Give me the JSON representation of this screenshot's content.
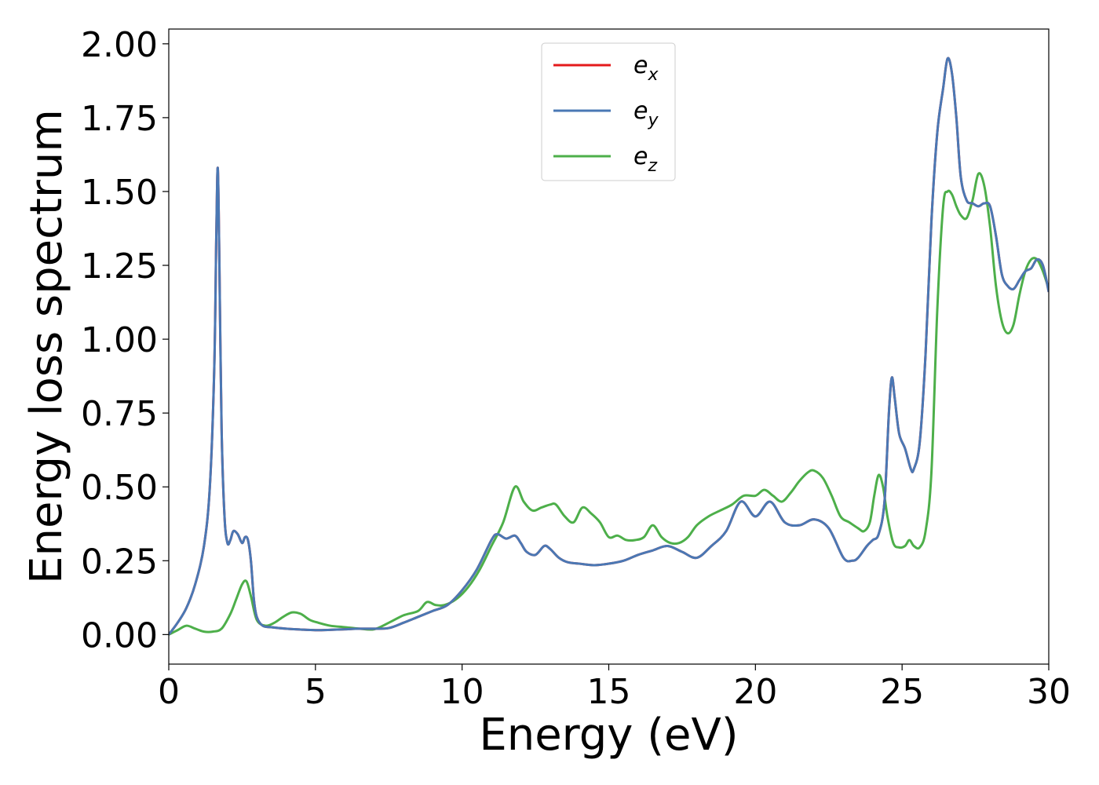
{
  "chart_data": {
    "type": "line",
    "title": "",
    "xlabel": "Energy (eV)",
    "ylabel": "Energy loss spectrum",
    "xlim": [
      0,
      30
    ],
    "ylim": [
      -0.1,
      2.05
    ],
    "xticks": [
      0,
      5,
      10,
      15,
      20,
      25,
      30
    ],
    "xtick_labels": [
      "0",
      "5",
      "10",
      "15",
      "20",
      "25",
      "30"
    ],
    "yticks": [
      0.0,
      0.25,
      0.5,
      0.75,
      1.0,
      1.25,
      1.5,
      1.75,
      2.0
    ],
    "ytick_labels": [
      "0.00",
      "0.25",
      "0.50",
      "0.75",
      "1.00",
      "1.25",
      "1.50",
      "1.75",
      "2.00"
    ],
    "grid": false,
    "legend_position": "top-center",
    "series": [
      {
        "name": "e",
        "subscript": "x",
        "color": "#e41a1c",
        "x": [
          0,
          0.3,
          0.6,
          0.9,
          1.2,
          1.4,
          1.55,
          1.62,
          1.67,
          1.72,
          1.8,
          1.9,
          2.0,
          2.1,
          2.2,
          2.35,
          2.5,
          2.6,
          2.7,
          2.8,
          2.9,
          3.0,
          3.2,
          3.5,
          4.0,
          4.5,
          5.0,
          5.5,
          6.0,
          6.5,
          7.0,
          7.5,
          8.0,
          8.5,
          9.0,
          9.5,
          10.0,
          10.5,
          11.0,
          11.2,
          11.5,
          11.8,
          12.0,
          12.2,
          12.5,
          12.8,
          13.0,
          13.3,
          13.6,
          14.0,
          14.5,
          15.0,
          15.5,
          16.0,
          16.5,
          17.0,
          17.5,
          18.0,
          18.5,
          19.0,
          19.5,
          20.0,
          20.5,
          21.0,
          21.5,
          22.0,
          22.5,
          23.0,
          23.3,
          23.5,
          23.8,
          24.0,
          24.2,
          24.4,
          24.55,
          24.65,
          24.75,
          24.9,
          25.1,
          25.3,
          25.4,
          25.6,
          25.8,
          26.0,
          26.2,
          26.4,
          26.55,
          26.7,
          26.85,
          27.0,
          27.2,
          27.4,
          27.6,
          27.8,
          28.0,
          28.2,
          28.4,
          28.6,
          28.8,
          29.0,
          29.2,
          29.4,
          29.6,
          29.8,
          30.0
        ],
        "y": [
          0.0,
          0.04,
          0.09,
          0.17,
          0.3,
          0.5,
          0.9,
          1.35,
          1.58,
          1.3,
          0.7,
          0.4,
          0.31,
          0.32,
          0.35,
          0.34,
          0.31,
          0.33,
          0.32,
          0.25,
          0.12,
          0.06,
          0.03,
          0.025,
          0.02,
          0.017,
          0.015,
          0.016,
          0.018,
          0.02,
          0.02,
          0.022,
          0.04,
          0.06,
          0.08,
          0.1,
          0.15,
          0.22,
          0.32,
          0.34,
          0.325,
          0.335,
          0.31,
          0.28,
          0.27,
          0.3,
          0.29,
          0.26,
          0.245,
          0.24,
          0.235,
          0.24,
          0.25,
          0.27,
          0.285,
          0.3,
          0.28,
          0.26,
          0.3,
          0.35,
          0.45,
          0.4,
          0.45,
          0.38,
          0.37,
          0.39,
          0.36,
          0.26,
          0.25,
          0.26,
          0.3,
          0.32,
          0.34,
          0.45,
          0.75,
          0.87,
          0.8,
          0.68,
          0.63,
          0.56,
          0.56,
          0.65,
          0.95,
          1.4,
          1.7,
          1.85,
          1.95,
          1.9,
          1.75,
          1.55,
          1.47,
          1.46,
          1.45,
          1.46,
          1.45,
          1.35,
          1.22,
          1.18,
          1.17,
          1.2,
          1.23,
          1.24,
          1.27,
          1.25,
          1.16
        ]
      },
      {
        "name": "e",
        "subscript": "y",
        "color": "#4a78b4",
        "x": [
          0,
          0.3,
          0.6,
          0.9,
          1.2,
          1.4,
          1.55,
          1.62,
          1.67,
          1.72,
          1.8,
          1.9,
          2.0,
          2.1,
          2.2,
          2.35,
          2.5,
          2.6,
          2.7,
          2.8,
          2.9,
          3.0,
          3.2,
          3.5,
          4.0,
          4.5,
          5.0,
          5.5,
          6.0,
          6.5,
          7.0,
          7.5,
          8.0,
          8.5,
          9.0,
          9.5,
          10.0,
          10.5,
          11.0,
          11.2,
          11.5,
          11.8,
          12.0,
          12.2,
          12.5,
          12.8,
          13.0,
          13.3,
          13.6,
          14.0,
          14.5,
          15.0,
          15.5,
          16.0,
          16.5,
          17.0,
          17.5,
          18.0,
          18.5,
          19.0,
          19.5,
          20.0,
          20.5,
          21.0,
          21.5,
          22.0,
          22.5,
          23.0,
          23.3,
          23.5,
          23.8,
          24.0,
          24.2,
          24.4,
          24.55,
          24.65,
          24.75,
          24.9,
          25.1,
          25.3,
          25.4,
          25.6,
          25.8,
          26.0,
          26.2,
          26.4,
          26.55,
          26.7,
          26.85,
          27.0,
          27.2,
          27.4,
          27.6,
          27.8,
          28.0,
          28.2,
          28.4,
          28.6,
          28.8,
          29.0,
          29.2,
          29.4,
          29.6,
          29.8,
          30.0
        ],
        "y": [
          0.0,
          0.04,
          0.09,
          0.17,
          0.3,
          0.5,
          0.9,
          1.35,
          1.58,
          1.3,
          0.7,
          0.4,
          0.31,
          0.32,
          0.35,
          0.34,
          0.31,
          0.33,
          0.32,
          0.25,
          0.12,
          0.06,
          0.03,
          0.025,
          0.02,
          0.017,
          0.015,
          0.016,
          0.018,
          0.02,
          0.02,
          0.022,
          0.04,
          0.06,
          0.08,
          0.1,
          0.15,
          0.22,
          0.32,
          0.34,
          0.325,
          0.335,
          0.31,
          0.28,
          0.27,
          0.3,
          0.29,
          0.26,
          0.245,
          0.24,
          0.235,
          0.24,
          0.25,
          0.27,
          0.285,
          0.3,
          0.28,
          0.26,
          0.3,
          0.35,
          0.45,
          0.4,
          0.45,
          0.38,
          0.37,
          0.39,
          0.36,
          0.26,
          0.25,
          0.26,
          0.3,
          0.32,
          0.34,
          0.45,
          0.75,
          0.87,
          0.8,
          0.68,
          0.63,
          0.56,
          0.56,
          0.65,
          0.95,
          1.4,
          1.7,
          1.85,
          1.95,
          1.9,
          1.75,
          1.55,
          1.47,
          1.46,
          1.45,
          1.46,
          1.45,
          1.35,
          1.22,
          1.18,
          1.17,
          1.2,
          1.23,
          1.24,
          1.27,
          1.25,
          1.16
        ]
      },
      {
        "name": "e",
        "subscript": "z",
        "color": "#4daf4a",
        "x": [
          0,
          0.3,
          0.6,
          0.9,
          1.2,
          1.5,
          1.8,
          2.1,
          2.3,
          2.5,
          2.65,
          2.8,
          3.0,
          3.3,
          3.6,
          3.9,
          4.2,
          4.5,
          4.8,
          5.1,
          5.5,
          6.0,
          6.5,
          7.0,
          7.5,
          8.0,
          8.5,
          8.8,
          9.1,
          9.4,
          9.8,
          10.2,
          10.6,
          11.0,
          11.4,
          11.8,
          12.1,
          12.4,
          12.7,
          13.0,
          13.2,
          13.5,
          13.8,
          14.1,
          14.4,
          14.7,
          15.0,
          15.3,
          15.6,
          15.9,
          16.2,
          16.5,
          16.8,
          17.1,
          17.4,
          17.7,
          18.0,
          18.4,
          18.8,
          19.2,
          19.6,
          20.0,
          20.3,
          20.6,
          20.9,
          21.2,
          21.5,
          21.8,
          22.0,
          22.3,
          22.6,
          22.9,
          23.2,
          23.5,
          23.7,
          23.9,
          24.05,
          24.2,
          24.35,
          24.5,
          24.7,
          24.9,
          25.1,
          25.25,
          25.4,
          25.6,
          25.8,
          26.0,
          26.2,
          26.4,
          26.55,
          26.7,
          26.85,
          27.0,
          27.2,
          27.4,
          27.6,
          27.8,
          28.0,
          28.2,
          28.4,
          28.6,
          28.8,
          29.0,
          29.2,
          29.4,
          29.6,
          29.8,
          30.0
        ],
        "y": [
          0.0,
          0.015,
          0.03,
          0.02,
          0.01,
          0.01,
          0.02,
          0.07,
          0.12,
          0.17,
          0.18,
          0.13,
          0.05,
          0.03,
          0.04,
          0.06,
          0.075,
          0.07,
          0.05,
          0.04,
          0.03,
          0.025,
          0.02,
          0.018,
          0.04,
          0.065,
          0.08,
          0.11,
          0.1,
          0.1,
          0.12,
          0.16,
          0.22,
          0.3,
          0.38,
          0.5,
          0.45,
          0.42,
          0.43,
          0.44,
          0.44,
          0.4,
          0.38,
          0.43,
          0.41,
          0.38,
          0.33,
          0.335,
          0.32,
          0.32,
          0.33,
          0.37,
          0.33,
          0.31,
          0.31,
          0.33,
          0.37,
          0.4,
          0.42,
          0.44,
          0.47,
          0.47,
          0.49,
          0.47,
          0.45,
          0.48,
          0.52,
          0.55,
          0.555,
          0.53,
          0.47,
          0.4,
          0.38,
          0.36,
          0.35,
          0.38,
          0.47,
          0.54,
          0.5,
          0.4,
          0.31,
          0.295,
          0.3,
          0.32,
          0.3,
          0.295,
          0.35,
          0.55,
          1.1,
          1.45,
          1.5,
          1.49,
          1.45,
          1.42,
          1.41,
          1.47,
          1.56,
          1.52,
          1.38,
          1.18,
          1.06,
          1.02,
          1.05,
          1.15,
          1.23,
          1.27,
          1.27,
          1.23,
          1.17
        ]
      }
    ]
  }
}
